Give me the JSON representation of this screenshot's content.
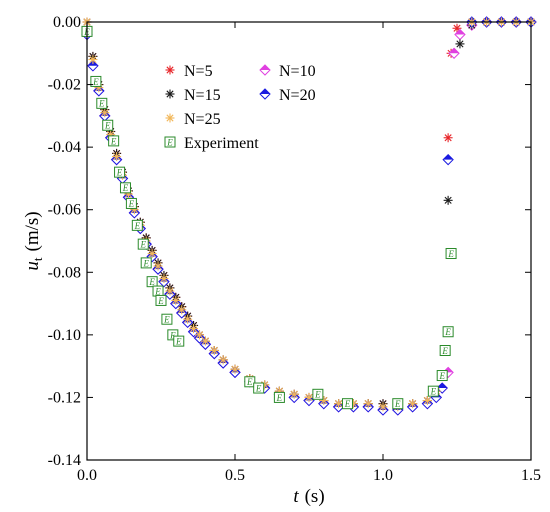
{
  "chart_data": {
    "type": "scatter",
    "title": "",
    "xlabel": {
      "var": "t",
      "unit": "(s)"
    },
    "ylabel": {
      "var": "u",
      "sub": "t",
      "unit": "(m/s)"
    },
    "xlim": [
      0.0,
      1.5
    ],
    "ylim": [
      -0.14,
      0.0
    ],
    "xticks": [
      "0.0",
      "0.5",
      "1.0",
      "1.5"
    ],
    "xtick_values": [
      0.0,
      0.5,
      1.0,
      1.5
    ],
    "yticks": [
      "0.00",
      "-0.02",
      "-0.04",
      "-0.06",
      "-0.08",
      "-0.10",
      "-0.12",
      "-0.14"
    ],
    "ytick_values": [
      0.0,
      -0.02,
      -0.04,
      -0.06,
      -0.08,
      -0.1,
      -0.12,
      -0.14
    ],
    "grid": false,
    "legend_position": "top-left, two columns",
    "series": [
      {
        "name": "N=5",
        "marker": "asterisk",
        "color": "#e8262a",
        "x": [
          0.0,
          0.02,
          0.04,
          0.06,
          0.08,
          0.1,
          0.12,
          0.14,
          0.16,
          0.18,
          0.2,
          0.22,
          0.24,
          0.26,
          0.28,
          0.3,
          0.32,
          0.34,
          0.36,
          0.38,
          0.4,
          0.43,
          0.46,
          0.5,
          0.55,
          0.6,
          0.65,
          0.7,
          0.75,
          0.8,
          0.85,
          0.9,
          0.95,
          1.0,
          1.05,
          1.1,
          1.15,
          1.18,
          1.22,
          1.23,
          1.25,
          1.3,
          1.35,
          1.4,
          1.45,
          1.5
        ],
        "y": [
          0.0,
          -0.011,
          -0.02,
          -0.028,
          -0.035,
          -0.042,
          -0.048,
          -0.054,
          -0.059,
          -0.064,
          -0.069,
          -0.073,
          -0.077,
          -0.081,
          -0.085,
          -0.088,
          -0.091,
          -0.094,
          -0.097,
          -0.1,
          -0.102,
          -0.105,
          -0.108,
          -0.111,
          -0.114,
          -0.116,
          -0.118,
          -0.119,
          -0.12,
          -0.121,
          -0.122,
          -0.122,
          -0.122,
          -0.122,
          -0.122,
          -0.122,
          -0.121,
          -0.118,
          -0.037,
          -0.01,
          -0.002,
          0.0,
          0.0,
          0.0,
          0.0,
          0.0
        ]
      },
      {
        "name": "N=10",
        "marker": "diamond-half",
        "color": "#e040e0",
        "x": [
          0.0,
          0.02,
          0.04,
          0.06,
          0.08,
          0.1,
          0.12,
          0.14,
          0.16,
          0.18,
          0.2,
          0.22,
          0.24,
          0.26,
          0.28,
          0.3,
          0.32,
          0.34,
          0.36,
          0.38,
          0.4,
          0.43,
          0.46,
          0.5,
          0.55,
          0.6,
          0.65,
          0.7,
          0.75,
          0.8,
          0.85,
          0.9,
          0.95,
          1.0,
          1.05,
          1.1,
          1.15,
          1.18,
          1.2,
          1.22,
          1.24,
          1.26,
          1.3,
          1.35,
          1.4,
          1.45,
          1.5
        ],
        "y": [
          -0.004,
          -0.014,
          -0.022,
          -0.03,
          -0.037,
          -0.044,
          -0.05,
          -0.056,
          -0.061,
          -0.066,
          -0.071,
          -0.075,
          -0.079,
          -0.083,
          -0.087,
          -0.09,
          -0.093,
          -0.096,
          -0.099,
          -0.101,
          -0.103,
          -0.106,
          -0.109,
          -0.112,
          -0.115,
          -0.117,
          -0.119,
          -0.12,
          -0.121,
          -0.122,
          -0.123,
          -0.123,
          -0.123,
          -0.124,
          -0.124,
          -0.123,
          -0.122,
          -0.12,
          -0.117,
          -0.112,
          -0.01,
          -0.004,
          -0.001,
          0.0,
          0.0,
          0.0,
          0.0
        ]
      },
      {
        "name": "N=15",
        "marker": "asterisk",
        "color": "#1a1a1a",
        "x": [
          0.0,
          0.02,
          0.04,
          0.06,
          0.08,
          0.1,
          0.12,
          0.14,
          0.16,
          0.18,
          0.2,
          0.22,
          0.24,
          0.26,
          0.28,
          0.3,
          0.32,
          0.34,
          0.36,
          0.38,
          0.4,
          0.43,
          0.46,
          0.5,
          0.55,
          0.6,
          0.65,
          0.7,
          0.75,
          0.8,
          0.85,
          0.9,
          0.95,
          1.0,
          1.05,
          1.1,
          1.15,
          1.18,
          1.22,
          1.26,
          1.3,
          1.35,
          1.4,
          1.45,
          1.5
        ],
        "y": [
          0.0,
          -0.011,
          -0.02,
          -0.028,
          -0.035,
          -0.042,
          -0.048,
          -0.054,
          -0.059,
          -0.064,
          -0.069,
          -0.073,
          -0.077,
          -0.081,
          -0.085,
          -0.088,
          -0.091,
          -0.094,
          -0.097,
          -0.1,
          -0.102,
          -0.105,
          -0.108,
          -0.111,
          -0.114,
          -0.116,
          -0.118,
          -0.119,
          -0.12,
          -0.121,
          -0.122,
          -0.122,
          -0.122,
          -0.122,
          -0.122,
          -0.122,
          -0.121,
          -0.118,
          -0.057,
          -0.007,
          -0.001,
          0.0,
          0.0,
          0.0,
          0.0
        ]
      },
      {
        "name": "N=20",
        "marker": "diamond-half",
        "color": "#1a1ae0",
        "x": [
          0.0,
          0.02,
          0.04,
          0.06,
          0.08,
          0.1,
          0.12,
          0.14,
          0.16,
          0.18,
          0.2,
          0.22,
          0.24,
          0.26,
          0.28,
          0.3,
          0.32,
          0.34,
          0.36,
          0.38,
          0.4,
          0.43,
          0.46,
          0.5,
          0.55,
          0.6,
          0.65,
          0.7,
          0.75,
          0.8,
          0.85,
          0.9,
          0.95,
          1.0,
          1.05,
          1.1,
          1.15,
          1.18,
          1.2,
          1.22,
          1.3,
          1.35,
          1.4,
          1.45,
          1.5
        ],
        "y": [
          -0.004,
          -0.014,
          -0.022,
          -0.03,
          -0.037,
          -0.044,
          -0.05,
          -0.056,
          -0.061,
          -0.066,
          -0.071,
          -0.075,
          -0.079,
          -0.083,
          -0.087,
          -0.09,
          -0.093,
          -0.096,
          -0.099,
          -0.101,
          -0.103,
          -0.106,
          -0.109,
          -0.112,
          -0.115,
          -0.117,
          -0.119,
          -0.12,
          -0.121,
          -0.122,
          -0.123,
          -0.123,
          -0.123,
          -0.124,
          -0.124,
          -0.123,
          -0.122,
          -0.12,
          -0.117,
          -0.044,
          0.0,
          0.0,
          0.0,
          0.0,
          0.0
        ]
      },
      {
        "name": "N=25",
        "marker": "asterisk",
        "color": "#f2b75a",
        "x": [
          0.0,
          0.02,
          0.04,
          0.06,
          0.08,
          0.1,
          0.12,
          0.14,
          0.16,
          0.18,
          0.2,
          0.22,
          0.24,
          0.26,
          0.28,
          0.3,
          0.32,
          0.34,
          0.36,
          0.38,
          0.4,
          0.43,
          0.46,
          0.5,
          0.55,
          0.6,
          0.65,
          0.7,
          0.75,
          0.8,
          0.85,
          0.9,
          0.95,
          1.0,
          1.05,
          1.1,
          1.15,
          1.18,
          1.3,
          1.35,
          1.4,
          1.45,
          1.5
        ],
        "y": [
          0.0,
          -0.012,
          -0.021,
          -0.029,
          -0.036,
          -0.043,
          -0.049,
          -0.055,
          -0.06,
          -0.065,
          -0.07,
          -0.074,
          -0.078,
          -0.082,
          -0.086,
          -0.089,
          -0.092,
          -0.095,
          -0.098,
          -0.1,
          -0.102,
          -0.105,
          -0.108,
          -0.111,
          -0.114,
          -0.116,
          -0.118,
          -0.119,
          -0.12,
          -0.121,
          -0.122,
          -0.122,
          -0.122,
          -0.123,
          -0.123,
          -0.122,
          -0.121,
          -0.118,
          0.0,
          0.0,
          0.0,
          0.0,
          0.0
        ]
      },
      {
        "name": "Experiment",
        "marker": "boxed-E",
        "color": "#2a8a2a",
        "x": [
          0.0,
          0.03,
          0.05,
          0.07,
          0.09,
          0.11,
          0.13,
          0.15,
          0.17,
          0.19,
          0.2,
          0.22,
          0.24,
          0.25,
          0.27,
          0.29,
          0.31,
          0.55,
          0.58,
          0.65,
          0.78,
          0.88,
          1.05,
          1.17,
          1.2,
          1.21,
          1.22,
          1.23
        ],
        "y": [
          -0.003,
          -0.019,
          -0.026,
          -0.033,
          -0.038,
          -0.048,
          -0.053,
          -0.058,
          -0.065,
          -0.071,
          -0.077,
          -0.083,
          -0.086,
          -0.089,
          -0.095,
          -0.1,
          -0.102,
          -0.115,
          -0.117,
          -0.12,
          -0.119,
          -0.122,
          -0.122,
          -0.118,
          -0.113,
          -0.105,
          -0.099,
          -0.074
        ]
      }
    ]
  }
}
